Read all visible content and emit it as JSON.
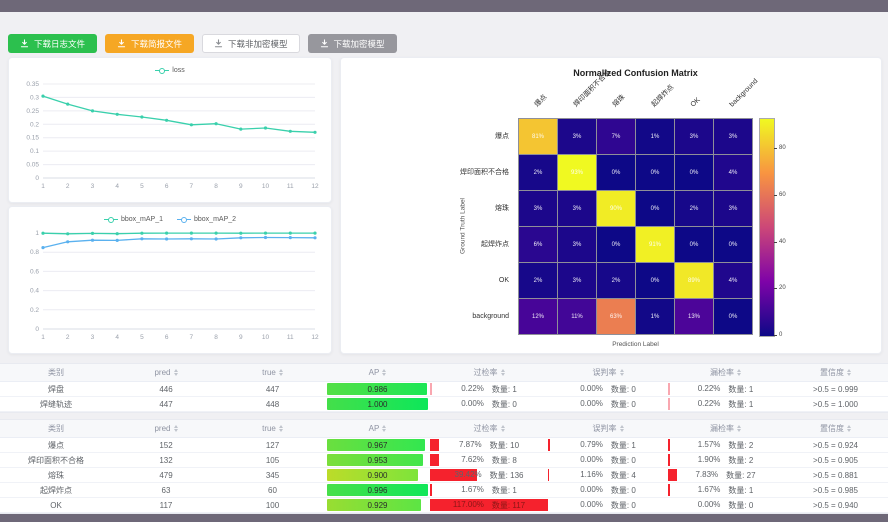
{
  "toolbar": {
    "buttons": [
      {
        "label": "下载日志文件",
        "variant": "green",
        "icon": "download-icon"
      },
      {
        "label": "下载简报文件",
        "variant": "orange",
        "icon": "download-icon"
      },
      {
        "label": "下载非加密模型",
        "variant": "white",
        "icon": "download-icon"
      },
      {
        "label": "下载加密模型",
        "variant": "gray",
        "icon": "download-icon"
      }
    ]
  },
  "colors": {
    "chrome_dark": "#6e6878",
    "teal_series": "#3ad0ac",
    "blue_series": "#5ab1ef",
    "bar_red": "#f5222d",
    "bar_pink": "#f9a7b0"
  },
  "chart_data": [
    {
      "type": "line",
      "title": "loss",
      "x": [
        1,
        2,
        3,
        4,
        5,
        6,
        7,
        8,
        9,
        10,
        11,
        12
      ],
      "series": [
        {
          "name": "loss",
          "color": "#3ad0ac",
          "values": [
            0.305,
            0.275,
            0.25,
            0.237,
            0.227,
            0.215,
            0.198,
            0.202,
            0.182,
            0.186,
            0.174,
            0.17
          ]
        }
      ],
      "ylim": [
        0,
        0.35
      ],
      "yticks": [
        0,
        0.05,
        0.1,
        0.15,
        0.2,
        0.25,
        0.3,
        0.35
      ],
      "grid": true,
      "legend_position": "top-center"
    },
    {
      "type": "line",
      "title": "bbox_mAP",
      "x": [
        1,
        2,
        3,
        4,
        5,
        6,
        7,
        8,
        9,
        10,
        11,
        12
      ],
      "series": [
        {
          "name": "bbox_mAP_1",
          "color": "#3ad0ac",
          "values": [
            0.998,
            0.992,
            0.996,
            0.993,
            0.998,
            0.999,
            0.999,
            0.999,
            0.998,
            0.999,
            0.999,
            0.999
          ]
        },
        {
          "name": "bbox_mAP_2",
          "color": "#5ab1ef",
          "values": [
            0.848,
            0.908,
            0.925,
            0.923,
            0.94,
            0.937,
            0.94,
            0.938,
            0.95,
            0.953,
            0.952,
            0.95
          ]
        }
      ],
      "ylim": [
        0,
        1
      ],
      "yticks": [
        0,
        0.2,
        0.4,
        0.6,
        0.8,
        1
      ],
      "grid": true,
      "legend_position": "top-center"
    },
    {
      "type": "heatmap",
      "title": "Normalized Confusion Matrix",
      "xlabel": "Prediction Label",
      "ylabel": "Ground Truth Label",
      "labels": [
        "爆点",
        "焊印面积不合格",
        "熔珠",
        "起焊炸点",
        "OK",
        "background"
      ],
      "rows": [
        [
          81,
          3,
          7,
          1,
          3,
          3
        ],
        [
          2,
          93,
          0,
          0,
          0,
          4
        ],
        [
          3,
          3,
          90,
          0,
          2,
          3
        ],
        [
          6,
          3,
          0,
          91,
          0,
          0
        ],
        [
          2,
          3,
          2,
          0,
          89,
          4
        ],
        [
          12,
          11,
          63,
          1,
          13,
          0
        ]
      ],
      "unit": "%",
      "vmax": 93,
      "colorbar_ticks": [
        0,
        20,
        40,
        60,
        80
      ],
      "colormap": "plasma"
    }
  ],
  "tables": [
    {
      "headers": [
        {
          "label": "类别",
          "sortable": false
        },
        {
          "label": "pred",
          "sortable": true
        },
        {
          "label": "true",
          "sortable": true
        },
        {
          "label": "AP",
          "sortable": true
        },
        {
          "label": "过检率",
          "sortable": true
        },
        {
          "label": "误判率",
          "sortable": true
        },
        {
          "label": "漏检率",
          "sortable": true
        },
        {
          "label": "置信度",
          "sortable": true
        }
      ],
      "count_prefix": "数量:",
      "rows": [
        {
          "cls": "焊盘",
          "pred": "446",
          "true": "447",
          "ap": 0.986,
          "ap_label": "0.986",
          "over": {
            "pct": "0.22%",
            "frac": 0.22,
            "count": "1"
          },
          "mis": {
            "pct": "0.00%",
            "frac": 0,
            "count": "0"
          },
          "miss": {
            "pct": "0.22%",
            "frac": 0.22,
            "count": "1"
          },
          "conf": ">0.5 = 0.999"
        },
        {
          "cls": "焊缝轨迹",
          "pred": "447",
          "true": "448",
          "ap": 1.0,
          "ap_label": "1.000",
          "over": {
            "pct": "0.00%",
            "frac": 0,
            "count": "0"
          },
          "mis": {
            "pct": "0.00%",
            "frac": 0,
            "count": "0"
          },
          "miss": {
            "pct": "0.22%",
            "frac": 0.22,
            "count": "1"
          },
          "conf": ">0.5 = 1.000"
        }
      ]
    },
    {
      "headers": [
        {
          "label": "类别",
          "sortable": false
        },
        {
          "label": "pred",
          "sortable": true
        },
        {
          "label": "true",
          "sortable": true
        },
        {
          "label": "AP",
          "sortable": true
        },
        {
          "label": "过检率",
          "sortable": true
        },
        {
          "label": "误判率",
          "sortable": true
        },
        {
          "label": "漏检率",
          "sortable": true
        },
        {
          "label": "置信度",
          "sortable": true
        }
      ],
      "count_prefix": "数量:",
      "rows": [
        {
          "cls": "爆点",
          "pred": "152",
          "true": "127",
          "ap": 0.967,
          "ap_label": "0.967",
          "over": {
            "pct": "7.87%",
            "frac": 7.87,
            "count": "10"
          },
          "mis": {
            "pct": "0.79%",
            "frac": 0.79,
            "count": "1"
          },
          "miss": {
            "pct": "1.57%",
            "frac": 1.57,
            "count": "2"
          },
          "conf": ">0.5 = 0.924"
        },
        {
          "cls": "焊印面积不合格",
          "pred": "132",
          "true": "105",
          "ap": 0.953,
          "ap_label": "0.953",
          "over": {
            "pct": "7.62%",
            "frac": 7.62,
            "count": "8"
          },
          "mis": {
            "pct": "0.00%",
            "frac": 0,
            "count": "0"
          },
          "miss": {
            "pct": "1.90%",
            "frac": 1.9,
            "count": "2"
          },
          "conf": ">0.5 = 0.905"
        },
        {
          "cls": "熔珠",
          "pred": "479",
          "true": "345",
          "ap": 0.9,
          "ap_label": "0.900",
          "over": {
            "pct": "39.42%",
            "frac": 39.42,
            "count": "136"
          },
          "mis": {
            "pct": "1.16%",
            "frac": 1.16,
            "count": "4"
          },
          "miss": {
            "pct": "7.83%",
            "frac": 7.83,
            "count": "27"
          },
          "conf": ">0.5 = 0.881"
        },
        {
          "cls": "起焊炸点",
          "pred": "63",
          "true": "60",
          "ap": 0.996,
          "ap_label": "0.996",
          "over": {
            "pct": "1.67%",
            "frac": 1.67,
            "count": "1"
          },
          "mis": {
            "pct": "0.00%",
            "frac": 0,
            "count": "0"
          },
          "miss": {
            "pct": "1.67%",
            "frac": 1.67,
            "count": "1"
          },
          "conf": ">0.5 = 0.985"
        },
        {
          "cls": "OK",
          "pred": "117",
          "true": "100",
          "ap": 0.929,
          "ap_label": "0.929",
          "over": {
            "pct": "117.00%",
            "frac": 117,
            "count": "117"
          },
          "mis": {
            "pct": "0.00%",
            "frac": 0,
            "count": "0"
          },
          "miss": {
            "pct": "0.00%",
            "frac": 0,
            "count": "0"
          },
          "conf": ">0.5 = 0.940"
        }
      ]
    }
  ]
}
